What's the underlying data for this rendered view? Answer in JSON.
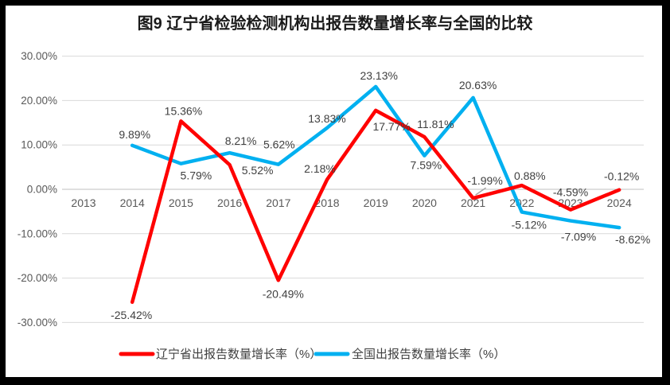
{
  "chart_data": {
    "type": "line",
    "title": "图9  辽宁省检验检测机构出报告数量增长率与全国的比较",
    "categories": [
      "2013",
      "2014",
      "2015",
      "2016",
      "2017",
      "2018",
      "2019",
      "2020",
      "2021",
      "2022",
      "2023",
      "2024"
    ],
    "series": [
      {
        "name": "辽宁省出报告数量增长率（%）",
        "color": "#ff0000",
        "start_index": 1,
        "values": [
          -25.42,
          15.36,
          5.52,
          -20.49,
          2.18,
          17.77,
          11.81,
          -1.99,
          0.88,
          -4.59,
          -0.12
        ],
        "label_offsets": [
          [
            -1,
            16
          ],
          [
            3,
            -13
          ],
          [
            35,
            7
          ],
          [
            6,
            17
          ],
          [
            -9,
            -14
          ],
          [
            20,
            20
          ],
          [
            14,
            -16
          ],
          [
            15,
            -22
          ],
          [
            10,
            -12
          ],
          [
            0,
            -22
          ],
          [
            3,
            -17
          ]
        ]
      },
      {
        "name": "全国出报告数量增长率（%）",
        "color": "#00b0f0",
        "start_index": 1,
        "values": [
          9.89,
          5.79,
          8.21,
          5.62,
          13.83,
          23.13,
          7.59,
          20.63,
          -5.12,
          -7.09,
          -8.62
        ],
        "label_offsets": [
          [
            3,
            -14
          ],
          [
            19,
            15
          ],
          [
            14,
            -15
          ],
          [
            1,
            -25
          ],
          [
            0,
            -12
          ],
          [
            4,
            -14
          ],
          [
            2,
            12
          ],
          [
            6,
            -16
          ],
          [
            9,
            16
          ],
          [
            10,
            20
          ],
          [
            17,
            15
          ]
        ]
      }
    ],
    "ylim": [
      -30,
      30
    ],
    "ytick_step": 10,
    "ytick_format": "0.00%",
    "label_format": "0.00%",
    "grid": true,
    "legend_position": "bottom",
    "leader_lines": [
      {
        "series": 0,
        "index": 7
      }
    ],
    "colors": {
      "gridline": "#d9d9d9",
      "zero_axis": "#bfbfbf",
      "axis_text": "#595959",
      "data_label_text": "#404040",
      "leader_line": "#a6a6a6",
      "frame": "#000000",
      "plot_background": "#ffffff"
    }
  }
}
